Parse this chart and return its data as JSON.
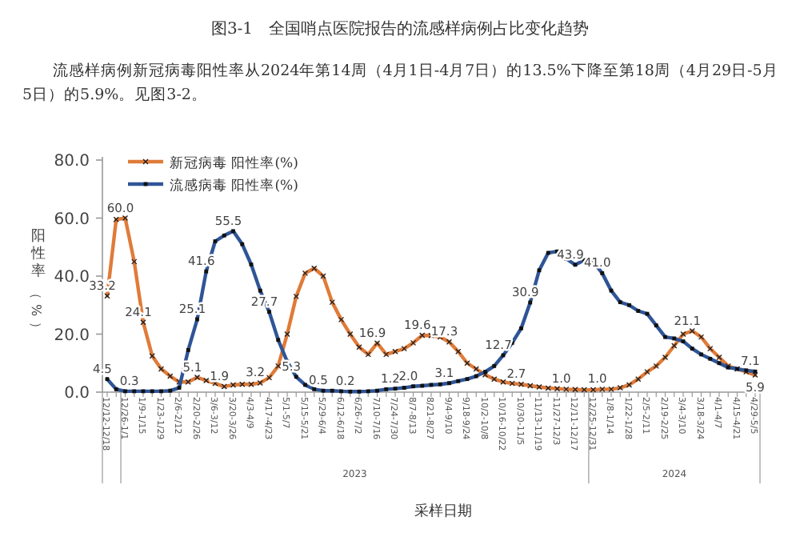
{
  "chart_data": {
    "type": "line",
    "title": "图3-1　全国哨点医院报告的流感样病例占比变化趋势",
    "subtitle": "流感样病例新冠病毒阳性率从2024年第14周（4月1日-4月7日）的13.5%下降至第18周（4月29日-5月5日）的5.9%。见图3-2。",
    "xlabel": "采样日期",
    "ylabel": "阳性率（%）",
    "categories": [
      "12/12-12/18",
      null,
      "12/26-1/1",
      null,
      "1/9-1/15",
      null,
      "1/23-1/29",
      null,
      "2/6-2/12",
      null,
      "2/20-2/26",
      null,
      "3/6-3/12",
      null,
      "3/20-3/26",
      null,
      "4/3-4/9",
      null,
      "4/17-4/23",
      null,
      "5/1-5/7",
      null,
      "5/15-5/21",
      null,
      "5/29-6/4",
      null,
      "6/12-6/18",
      null,
      "6/26-7/2",
      null,
      "7/10-7/16",
      null,
      "7/24-7/30",
      null,
      "8/7-8/13",
      null,
      "8/21-8/27",
      null,
      "9/4-9/10",
      null,
      "9/18-9/24",
      null,
      "10/2-10/8",
      null,
      "10/16-10/22",
      null,
      "10/30-11/5",
      null,
      "11/13-11/19",
      null,
      "11/27-12/3",
      null,
      "12/11-12/17",
      null,
      "12/25-12/31",
      null,
      "1/8-1/14",
      null,
      "1/22-1/28",
      null,
      "2/5-2/11",
      null,
      "2/19-2/25",
      null,
      "3/4-3/10",
      null,
      "3/18-3/24",
      null,
      "4/1-4/7",
      null,
      "4/15-4/21",
      null,
      "4/29-5/5"
    ],
    "series": [
      {
        "name": "新冠病毒 阳性率(%)",
        "color": "#e07b39",
        "marker": "cross",
        "values": [
          33.2,
          59.5,
          60.0,
          45,
          24.1,
          12.5,
          8,
          5.5,
          3.5,
          3.5,
          5.1,
          4,
          3,
          1.9,
          2.5,
          2.7,
          2.7,
          3.2,
          5,
          9,
          20,
          33,
          41,
          42.7,
          40,
          31,
          25,
          20,
          15.5,
          13,
          16.9,
          13,
          14,
          15,
          17,
          19.6,
          19.5,
          19,
          17.3,
          14,
          10,
          8,
          6,
          4.5,
          3.5,
          3,
          2.7,
          2.2,
          1.8,
          1.4,
          1.2,
          1.0,
          0.9,
          0.8,
          0.8,
          1.0,
          1.0,
          1.5,
          2.5,
          4.5,
          7,
          9,
          12,
          16,
          20,
          21.1,
          19,
          15,
          12,
          9,
          8,
          7,
          5.9
        ],
        "value_labels": [
          "33.2",
          null,
          "60.0",
          null,
          "24.1",
          null,
          null,
          null,
          null,
          null,
          "5.1",
          null,
          null,
          "1.9",
          null,
          null,
          null,
          "3.2",
          null,
          null,
          null,
          null,
          null,
          null,
          null,
          null,
          null,
          null,
          null,
          null,
          "16.9",
          null,
          null,
          null,
          null,
          "19.6",
          null,
          null,
          "17.3",
          null,
          null,
          null,
          null,
          null,
          null,
          null,
          "2.7",
          null,
          null,
          null,
          null,
          "1.0",
          null,
          null,
          null,
          "1.0",
          null,
          null,
          null,
          null,
          null,
          null,
          null,
          null,
          null,
          "21.1",
          null,
          null,
          null,
          null,
          null,
          null,
          "5.9"
        ]
      },
      {
        "name": "流感病毒 阳性率(%)",
        "color": "#2f5597",
        "marker": "square",
        "values": [
          4.5,
          1,
          0.3,
          0.3,
          0.3,
          0.3,
          0.3,
          0.5,
          1.5,
          14.5,
          25.1,
          41.6,
          52,
          54,
          55.5,
          51,
          44,
          35,
          27.7,
          18,
          10.5,
          5.3,
          2.5,
          1,
          0.5,
          0.5,
          0.3,
          0.2,
          0.2,
          0.3,
          0.5,
          1.0,
          1.2,
          1.5,
          2.0,
          2.2,
          2.5,
          2.7,
          3.1,
          3.8,
          4.5,
          5.5,
          7,
          9,
          12.7,
          17,
          22,
          30.9,
          42,
          48,
          48.5,
          46,
          43.9,
          45.5,
          45,
          41.0,
          35,
          31,
          30,
          28,
          27,
          23,
          19,
          18.5,
          17.5,
          15,
          13,
          11.5,
          10,
          8.5,
          8,
          7.5,
          7.1
        ],
        "value_labels": [
          "4.5",
          null,
          null,
          "0.3",
          null,
          null,
          null,
          null,
          null,
          null,
          "25.1",
          "41.6",
          null,
          null,
          "55.5",
          null,
          null,
          null,
          "27.7",
          null,
          null,
          "5.3",
          null,
          null,
          "0.5",
          null,
          null,
          "0.2",
          null,
          null,
          null,
          null,
          "1.2",
          null,
          "2.0",
          null,
          null,
          null,
          "3.1",
          null,
          null,
          null,
          null,
          null,
          "12.7",
          null,
          null,
          "30.9",
          null,
          null,
          null,
          null,
          "43.9",
          null,
          null,
          "41.0",
          null,
          null,
          null,
          null,
          null,
          null,
          null,
          null,
          null,
          null,
          null,
          null,
          null,
          null,
          null,
          null,
          "7.1"
        ]
      }
    ],
    "ylim": [
      0,
      80
    ],
    "yticks": [
      {
        "value": 0,
        "label": "0.0"
      },
      {
        "value": 20,
        "label": "20.0"
      },
      {
        "value": 40,
        "label": "40.0"
      },
      {
        "value": 60,
        "label": "60.0"
      },
      {
        "value": 80,
        "label": "80.0"
      }
    ],
    "legend": "top left",
    "grid": false,
    "annotations": [
      "2023",
      "2024"
    ]
  }
}
